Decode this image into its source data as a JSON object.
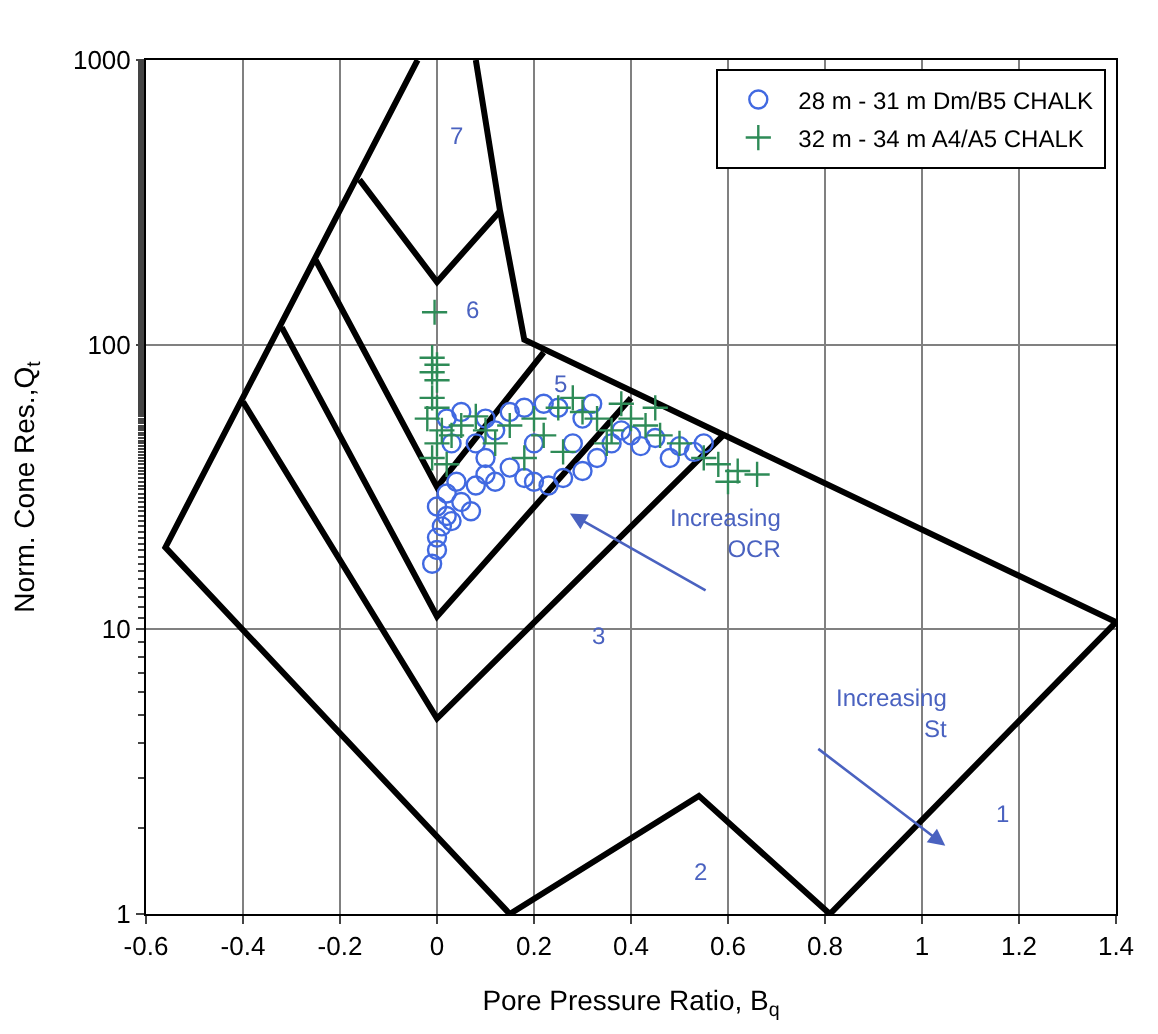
{
  "chart_data": {
    "type": "scatter",
    "xlabel": "Pore Pressure Ratio, B$_{q}$",
    "ylabel": "Norm. Cone Res.,Q$_{t}$",
    "xlim": [
      -0.6,
      1.4
    ],
    "xticks": [
      -0.6,
      -0.4,
      -0.2,
      0,
      0.2,
      0.4,
      0.6,
      0.8,
      1,
      1.2,
      1.4
    ],
    "ylim": [
      1,
      1000
    ],
    "yticks": [
      1,
      10,
      100,
      1000
    ],
    "log": "y",
    "grid": true,
    "legend": "top right",
    "series": [
      {
        "type": "line",
        "color": "#000000",
        "marker": "none",
        "line_style": "solid",
        "x": [
          -0.04,
          -0.56,
          0.15,
          0.54,
          0.81,
          1.4,
          0.18,
          0.13,
          0.08
        ],
        "values": [
          1000,
          19.4,
          1,
          2.6,
          1,
          10.6,
          104,
          295,
          1000
        ]
      },
      {
        "type": "line",
        "color": "#000000",
        "marker": "none",
        "line_style": "solid",
        "x": [
          -0.16,
          0.0,
          0.13
        ],
        "values": [
          380,
          166,
          295
        ]
      },
      {
        "type": "line",
        "color": "#000000",
        "marker": "none",
        "line_style": "solid",
        "x": [
          -0.25,
          0.0,
          0.22
        ],
        "values": [
          198,
          31.6,
          94
        ]
      },
      {
        "type": "line",
        "color": "#000000",
        "marker": "none",
        "line_style": "solid",
        "x": [
          -0.32,
          0.0,
          0.4
        ],
        "values": [
          115,
          11.1,
          65
        ]
      },
      {
        "type": "line",
        "color": "#000000",
        "marker": "none",
        "line_style": "solid",
        "x": [
          -0.4,
          0.0,
          0.59
        ],
        "values": [
          63,
          4.86,
          48
        ]
      },
      {
        "name": "28 m - 31 m Dm/B5 CHALK",
        "color": "#4169e1",
        "marker": "circle",
        "x": [
          -0.01,
          0,
          0,
          0.01,
          0.02,
          0,
          0.03,
          0.05,
          0.02,
          0.07,
          0.04,
          0.08,
          0.1,
          0.12,
          0.15,
          0.18,
          0.2,
          0.23,
          0.26,
          0.3,
          0.33,
          0.36,
          0.4,
          0.45,
          0.5,
          0.53,
          0.55,
          0.48,
          0.42,
          0.38,
          0.3,
          0.25,
          0.22,
          0.18,
          0.15,
          0.1,
          0.05,
          0.02,
          0.12,
          0.08,
          0.2,
          0.28,
          0.32,
          0.1,
          0.03
        ],
        "values": [
          17,
          19,
          21,
          23,
          25,
          27,
          24,
          28,
          30,
          26,
          33,
          32,
          35,
          33,
          37,
          34,
          33,
          32,
          34,
          36,
          40,
          45,
          48,
          47,
          44,
          42,
          45,
          40,
          44,
          50,
          55,
          60,
          62,
          60,
          58,
          55,
          58,
          55,
          50,
          45,
          45,
          45,
          62,
          40,
          45
        ]
      },
      {
        "name": "32 m - 34 m A4/A5 CHALK",
        "color": "#2e8b57",
        "marker": "cross",
        "x": [
          -0.005,
          -0.01,
          0,
          -0.01,
          0,
          -0.01,
          0,
          -0.02,
          0.01,
          0,
          -0.01,
          0.02,
          0.03,
          0.05,
          0.08,
          0.1,
          0.12,
          0.15,
          0.2,
          0.22,
          0.25,
          0.28,
          0.3,
          0.33,
          0.36,
          0.4,
          0.43,
          0.46,
          0.5,
          0.55,
          0.58,
          0.62,
          0.66,
          0.6,
          0.35,
          0.26,
          0.18,
          0.45,
          0.38
        ],
        "values": [
          130,
          90,
          85,
          80,
          75,
          65,
          60,
          55,
          50,
          45,
          40,
          38,
          48,
          52,
          56,
          50,
          45,
          52,
          55,
          48,
          60,
          65,
          58,
          55,
          50,
          55,
          52,
          48,
          45,
          40,
          38,
          36,
          35,
          33,
          45,
          42,
          40,
          60,
          62
        ]
      }
    ],
    "annotations": [
      "1",
      "2",
      "3",
      "5",
      "6",
      "7",
      "Increasing\nOCR",
      "Increasing\nSt"
    ]
  }
}
